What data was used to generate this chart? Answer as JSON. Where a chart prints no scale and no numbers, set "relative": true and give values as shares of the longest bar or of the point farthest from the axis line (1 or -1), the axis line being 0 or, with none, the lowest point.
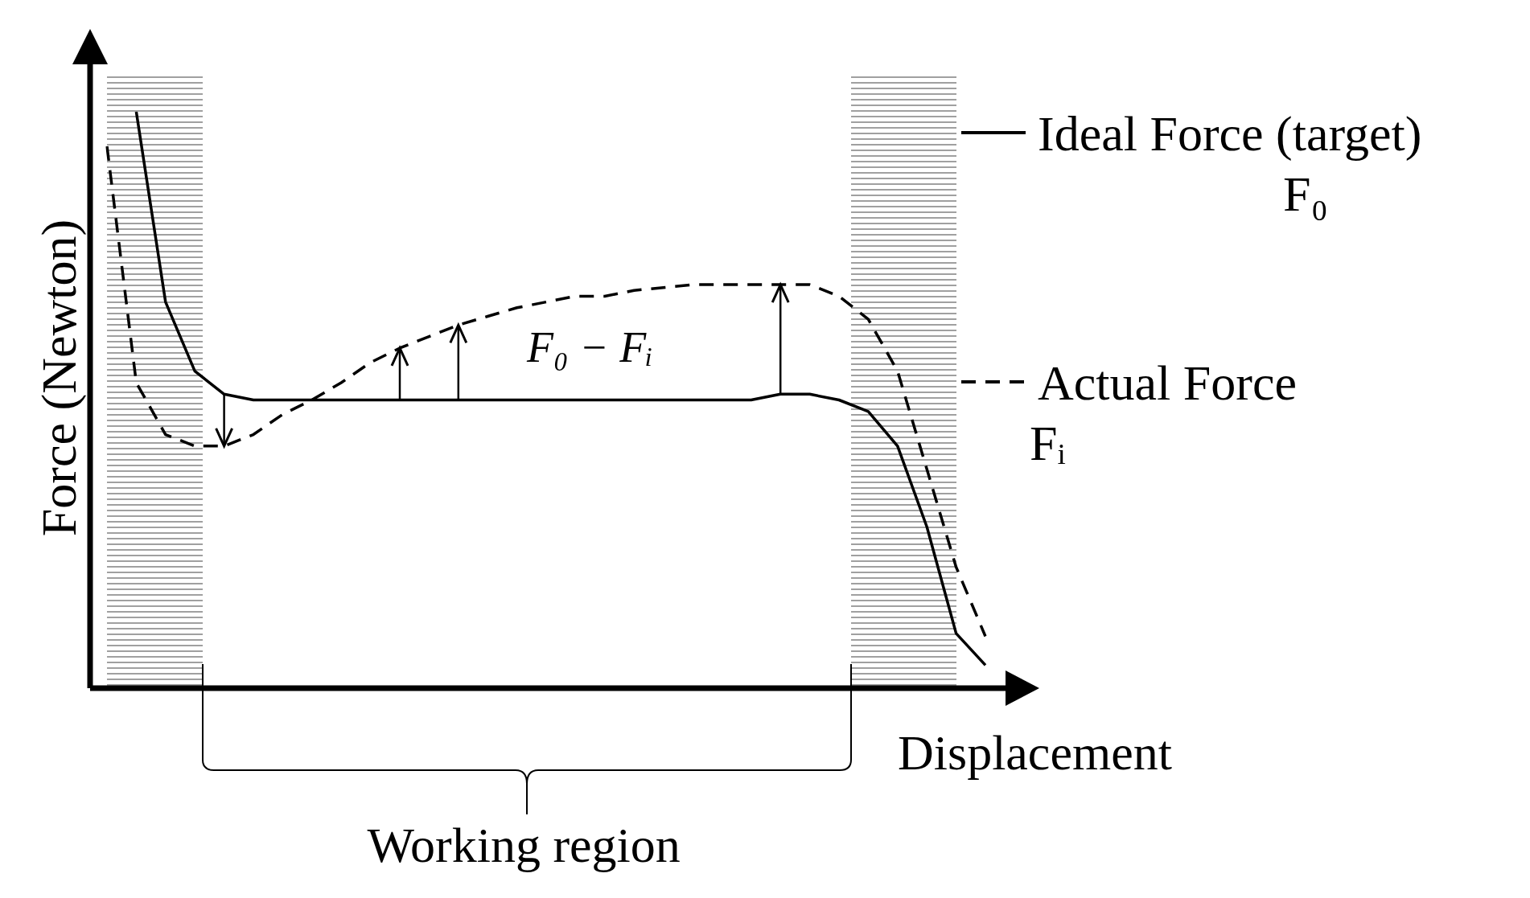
{
  "chart_data": {
    "type": "line",
    "relative": true,
    "xlabel": "Displacement",
    "ylabel": "Force (Newton)",
    "tick_labels": false,
    "legend": "right",
    "marker": "none",
    "categories": [
      null,
      null,
      null,
      null,
      null,
      null,
      null,
      null,
      null,
      null,
      null,
      null,
      null,
      null,
      null,
      null,
      null,
      null,
      null,
      null,
      null,
      null,
      null,
      null,
      null,
      null,
      null,
      null,
      null,
      null,
      null
    ],
    "series": [
      {
        "name": "Ideal Force (target) F₀",
        "color": "#000000",
        "line_style": "solid",
        "values": [
          null,
          1.0,
          0.67,
          0.55,
          0.51,
          0.5,
          0.5,
          0.5,
          0.5,
          0.5,
          0.5,
          0.5,
          0.5,
          0.5,
          0.5,
          0.5,
          0.5,
          0.5,
          0.5,
          0.5,
          0.5,
          0.5,
          0.5,
          0.51,
          0.51,
          0.5,
          0.48,
          0.42,
          0.28,
          0.095,
          0.04
        ]
      },
      {
        "name": "Actual Force Fᵢ",
        "color": "#000000",
        "line_style": "dashed",
        "values": [
          0.94,
          0.53,
          0.44,
          0.42,
          0.42,
          0.44,
          0.475,
          0.5,
          0.53,
          0.565,
          0.59,
          0.61,
          0.63,
          0.645,
          0.66,
          0.67,
          0.68,
          0.68,
          0.69,
          0.695,
          0.7,
          0.7,
          0.7,
          0.7,
          0.7,
          0.68,
          0.64,
          0.55,
          0.38,
          0.21,
          0.09
        ]
      }
    ],
    "annotations": [
      "F₀ − Fᵢ",
      "Working region"
    ]
  }
}
